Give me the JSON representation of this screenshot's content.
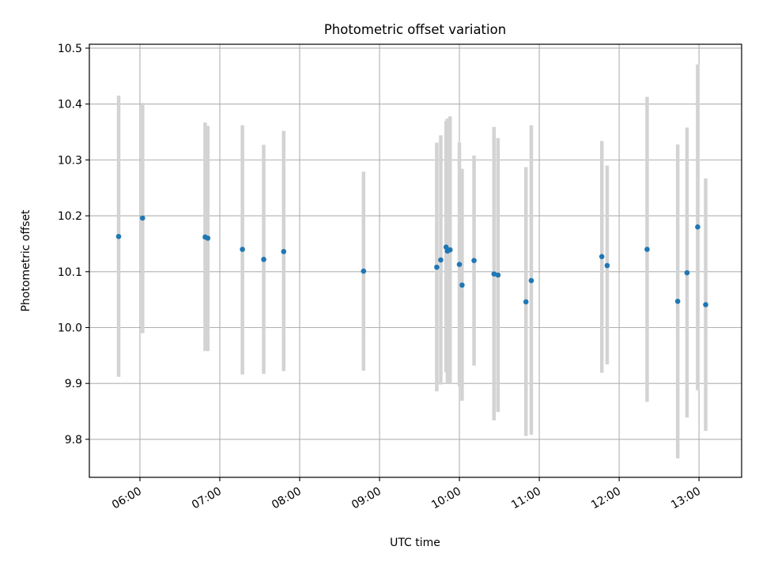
{
  "chart_data": {
    "type": "scatter",
    "title": "Photometric offset variation",
    "xlabel": "UTC time",
    "ylabel": "Photometric offset",
    "x_tick_labels": [
      "06:00",
      "07:00",
      "08:00",
      "09:00",
      "10:00",
      "11:00",
      "12:00",
      "13:00"
    ],
    "y_tick_labels": [
      "9.8",
      "9.9",
      "10.0",
      "10.1",
      "10.2",
      "10.3",
      "10.4",
      "10.5"
    ],
    "x_ticks": [
      "06:00",
      "07:00",
      "08:00",
      "09:00",
      "10:00",
      "11:00",
      "12:00",
      "13:00"
    ],
    "y_ticks": [
      9.8,
      9.9,
      10.0,
      10.1,
      10.2,
      10.3,
      10.4,
      10.5
    ],
    "xlim": [
      "05:22",
      "13:32"
    ],
    "ylim": [
      9.732,
      10.507
    ],
    "grid": true,
    "colors": {
      "point": "#1f77b4",
      "errorbar": "#d3d3d3",
      "grid": "#b0b0b0"
    },
    "points": [
      {
        "x": "05:44",
        "y": 10.163,
        "err_low": 9.912,
        "err_high": 10.415
      },
      {
        "x": "06:02",
        "y": 10.196,
        "err_low": 9.99,
        "err_high": 10.402
      },
      {
        "x": "06:49",
        "y": 10.162,
        "err_low": 9.958,
        "err_high": 10.367
      },
      {
        "x": "06:51",
        "y": 10.16,
        "err_low": 9.958,
        "err_high": 10.361
      },
      {
        "x": "07:17",
        "y": 10.14,
        "err_low": 9.916,
        "err_high": 10.362
      },
      {
        "x": "07:33",
        "y": 10.122,
        "err_low": 9.917,
        "err_high": 10.327
      },
      {
        "x": "07:48",
        "y": 10.136,
        "err_low": 9.922,
        "err_high": 10.352
      },
      {
        "x": "08:48",
        "y": 10.101,
        "err_low": 9.923,
        "err_high": 10.279
      },
      {
        "x": "09:43",
        "y": 10.108,
        "err_low": 9.886,
        "err_high": 10.331
      },
      {
        "x": "09:46",
        "y": 10.121,
        "err_low": 9.898,
        "err_high": 10.344
      },
      {
        "x": "09:50",
        "y": 10.144,
        "err_low": 9.92,
        "err_high": 10.37
      },
      {
        "x": "09:51",
        "y": 10.137,
        "err_low": 9.9,
        "err_high": 10.374
      },
      {
        "x": "09:53",
        "y": 10.139,
        "err_low": 9.9,
        "err_high": 10.378
      },
      {
        "x": "10:00",
        "y": 10.113,
        "err_low": 9.895,
        "err_high": 10.331
      },
      {
        "x": "10:02",
        "y": 10.076,
        "err_low": 9.869,
        "err_high": 10.284
      },
      {
        "x": "10:11",
        "y": 10.12,
        "err_low": 9.932,
        "err_high": 10.308
      },
      {
        "x": "10:26",
        "y": 10.096,
        "err_low": 9.834,
        "err_high": 10.359
      },
      {
        "x": "10:29",
        "y": 10.094,
        "err_low": 9.849,
        "err_high": 10.339
      },
      {
        "x": "10:50",
        "y": 10.046,
        "err_low": 9.806,
        "err_high": 10.287
      },
      {
        "x": "10:54",
        "y": 10.084,
        "err_low": 9.808,
        "err_high": 10.362
      },
      {
        "x": "11:47",
        "y": 10.127,
        "err_low": 9.919,
        "err_high": 10.334
      },
      {
        "x": "11:51",
        "y": 10.111,
        "err_low": 9.934,
        "err_high": 10.29
      },
      {
        "x": "12:21",
        "y": 10.14,
        "err_low": 9.867,
        "err_high": 10.413
      },
      {
        "x": "12:44",
        "y": 10.047,
        "err_low": 9.766,
        "err_high": 10.328
      },
      {
        "x": "12:51",
        "y": 10.098,
        "err_low": 9.839,
        "err_high": 10.358
      },
      {
        "x": "12:59",
        "y": 10.18,
        "err_low": 9.888,
        "err_high": 10.471
      },
      {
        "x": "13:05",
        "y": 10.041,
        "err_low": 9.815,
        "err_high": 10.267
      }
    ]
  }
}
